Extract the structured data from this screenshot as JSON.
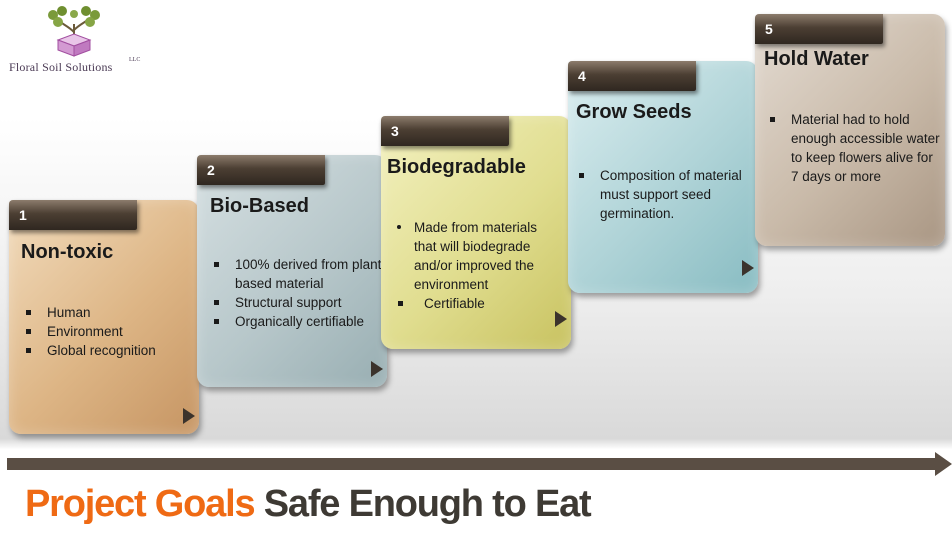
{
  "logo": {
    "name": "Floral Soil Solutions",
    "suffix": "LLC"
  },
  "steps": [
    {
      "number": "1",
      "title": "Non-toxic",
      "bullets": [
        "Human",
        "Environment",
        "Global recognition"
      ]
    },
    {
      "number": "2",
      "title": "Bio-Based",
      "bullets": [
        "100% derived from plant based material",
        "Structural support",
        "Organically certifiable"
      ]
    },
    {
      "number": "3",
      "title": "Biodegradable",
      "bullets": [
        "Made from materials that will biodegrade and/or improved the environment",
        "Certifiable"
      ]
    },
    {
      "number": "4",
      "title": "Grow Seeds",
      "bullets": [
        "Composition of material must support seed germination."
      ]
    },
    {
      "number": "5",
      "title": "Hold Water",
      "bullets": [
        "Material had to hold enough accessible water to keep flowers alive for 7 days or more"
      ]
    }
  ],
  "headline": {
    "accent": "Project Goals",
    "rest": "Safe Enough to Eat"
  },
  "colors": {
    "accent": "#ef6a14",
    "tab": "#4c3f33",
    "timeline": "#5a4e44"
  }
}
